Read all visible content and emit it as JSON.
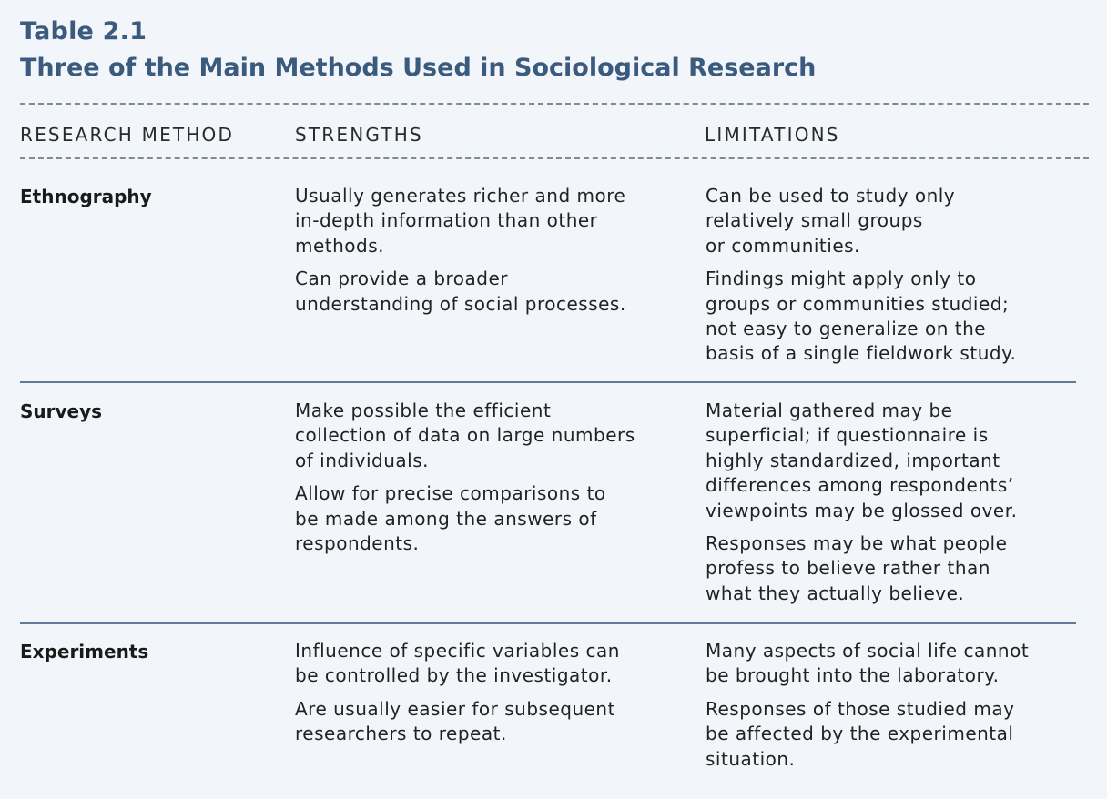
{
  "table": {
    "number": "Table 2.1",
    "title": "Three of the Main Methods Used in Sociological Research"
  },
  "headers": {
    "method": "RESEARCH METHOD",
    "strengths": "STRENGTHS",
    "limitations": "LIMITATIONS"
  },
  "rows": [
    {
      "method": "Ethnography",
      "strengths": [
        [
          "Usually generates richer and more",
          "in-depth information than other",
          "methods."
        ],
        [
          "Can provide a broader",
          "understanding of social processes."
        ]
      ],
      "limitations": [
        [
          "Can be used to study only",
          "relatively small groups",
          "or communities."
        ],
        [
          "Findings might apply only to",
          "groups or communities studied;",
          "not easy to generalize on the",
          "basis of a single fieldwork study."
        ]
      ]
    },
    {
      "method": "Surveys",
      "strengths": [
        [
          "Make possible the efficient",
          "collection of data on large numbers",
          "of individuals."
        ],
        [
          "Allow for precise comparisons to",
          "be made among the answers of",
          "respondents."
        ]
      ],
      "limitations": [
        [
          "Material gathered may be",
          "superficial; if questionnaire is",
          "highly standardized, important",
          "differences among respondents’",
          "viewpoints may be glossed over."
        ],
        [
          "Responses may be what people",
          "profess to believe rather than",
          "what they actually believe."
        ]
      ]
    },
    {
      "method": "Experiments",
      "strengths": [
        [
          "Influence of specific variables can",
          "be controlled by the investigator."
        ],
        [
          "Are usually easier for subsequent",
          "researchers to repeat."
        ]
      ],
      "limitations": [
        [
          "Many aspects of social life cannot",
          "be brought into the laboratory."
        ],
        [
          "Responses of those studied may",
          "be affected by the experimental",
          "situation."
        ]
      ]
    }
  ]
}
